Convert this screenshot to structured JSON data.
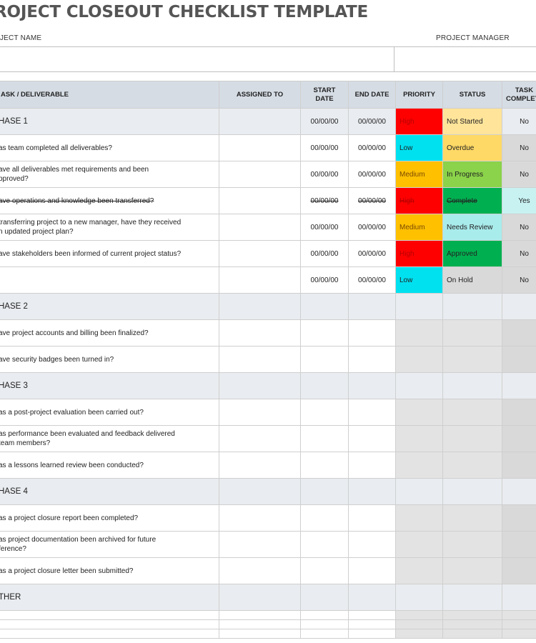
{
  "title": "ROJECT CLOSEOUT CHECKLIST TEMPLATE",
  "fields": {
    "project_name": "OJECT NAME",
    "project_manager": "PROJECT MANAGER"
  },
  "headers": {
    "task": "ASK  /  DELIVERABLE",
    "assigned": "ASSIGNED TO",
    "start": "START DATE",
    "end": "END DATE",
    "priority": "PRIORITY",
    "status": "STATUS",
    "complete": "TASK COMPLETE"
  },
  "colors": {
    "high": "#ff0000",
    "low": "#00e1f0",
    "medium": "#ffc000",
    "not_started": "#ffe49a",
    "overdue": "#ffd966",
    "in_progress": "#8bd34a",
    "complete": "#00b050",
    "needs_review": "#a9ecec",
    "approved": "#00b050",
    "on_hold": "#d9d9d9",
    "complete_yes": "#c8f2f2"
  },
  "phases": [
    {
      "label": "HASE 1",
      "start": "00/00/00",
      "end": "00/00/00",
      "priority": "High",
      "status": "Not Started",
      "complete": "No",
      "tasks": [
        {
          "task": "as team completed all deliverables?",
          "start": "00/00/00",
          "end": "00/00/00",
          "priority": "Low",
          "status": "Overdue",
          "complete": "No"
        },
        {
          "task": "ave all deliverables met requirements and been\npproved?",
          "start": "00/00/00",
          "end": "00/00/00",
          "priority": "Medium",
          "status": "In Progress",
          "complete": "No"
        },
        {
          "task": "ave operations and knowledge been transferred?",
          "start": "00/00/00",
          "end": "00/00/00",
          "priority": "High",
          "status": "Complete",
          "complete": "Yes",
          "done": true
        },
        {
          "task": "transferring project to a new manager, have they received\nn updated project plan?",
          "start": "00/00/00",
          "end": "00/00/00",
          "priority": "Medium",
          "status": "Needs Review",
          "complete": "No"
        },
        {
          "task": "ave stakeholders been informed of current project status?",
          "start": "00/00/00",
          "end": "00/00/00",
          "priority": "High",
          "status": "Approved",
          "complete": "No"
        },
        {
          "task": "",
          "start": "00/00/00",
          "end": "00/00/00",
          "priority": "Low",
          "status": "On Hold",
          "complete": "No"
        }
      ]
    },
    {
      "label": "HASE 2",
      "tasks": [
        {
          "task": "ave project accounts and billing been finalized?"
        },
        {
          "task": "ave security badges been turned in?"
        }
      ]
    },
    {
      "label": "HASE 3",
      "tasks": [
        {
          "task": "as a post-project evaluation been carried out?"
        },
        {
          "task": "as performance been evaluated and feedback delivered\n team members?"
        },
        {
          "task": "as a lessons learned review been conducted?"
        }
      ]
    },
    {
      "label": "HASE 4",
      "tasks": [
        {
          "task": "as a project closure report been completed?"
        },
        {
          "task": "as project documentation been archived for future\nference?"
        },
        {
          "task": "as a project closure letter been submitted?"
        }
      ]
    },
    {
      "label": "THER",
      "tasks": []
    }
  ]
}
